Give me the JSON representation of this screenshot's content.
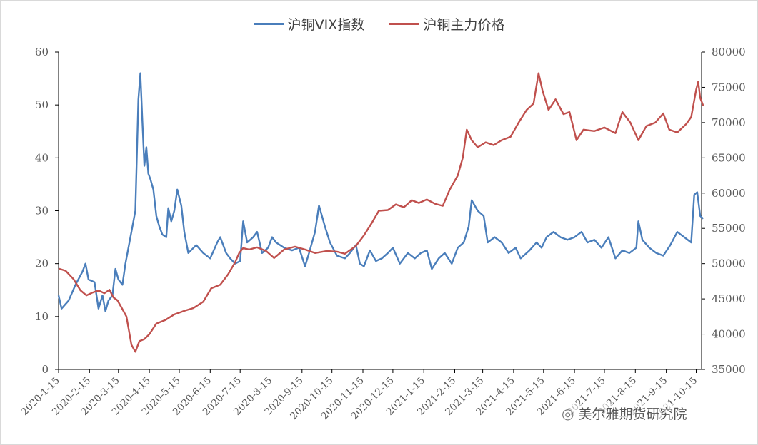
{
  "chart_data": {
    "type": "line",
    "title": "",
    "legend_placement": "top-center",
    "grid": false,
    "x_tick_labels": [
      "2020-1-15",
      "2020-2-15",
      "2020-3-15",
      "2020-4-15",
      "2020-5-15",
      "2020-6-15",
      "2020-7-15",
      "2020-8-15",
      "2020-9-15",
      "2020-10-15",
      "2020-11-15",
      "2020-12-15",
      "2021-1-15",
      "2021-2-15",
      "2021-3-15",
      "2021-4-15",
      "2021-5-15",
      "2021-6-15",
      "2021-7-15",
      "2021-8-15",
      "2021-9-15",
      "2021-10-15"
    ],
    "y_left": {
      "lim": [
        0,
        60
      ],
      "ticks": [
        0,
        10,
        20,
        30,
        40,
        50,
        60
      ]
    },
    "y_right": {
      "lim": [
        35000,
        80000
      ],
      "ticks": [
        35000,
        40000,
        45000,
        50000,
        55000,
        60000,
        65000,
        70000,
        75000,
        80000
      ]
    },
    "series": [
      {
        "name": "沪铜VIX指数",
        "axis": "left",
        "color": "#4a7ebb",
        "points": [
          [
            "2020-1-15",
            14
          ],
          [
            "2020-1-18",
            11.5
          ],
          [
            "2020-1-25",
            13
          ],
          [
            "2020-2-1",
            16
          ],
          [
            "2020-2-8",
            18.5
          ],
          [
            "2020-2-11",
            20
          ],
          [
            "2020-2-14",
            17
          ],
          [
            "2020-2-20",
            16.5
          ],
          [
            "2020-2-24",
            11.5
          ],
          [
            "2020-2-28",
            14
          ],
          [
            "2020-3-2",
            11
          ],
          [
            "2020-3-5",
            13
          ],
          [
            "2020-3-9",
            14
          ],
          [
            "2020-3-12",
            19
          ],
          [
            "2020-3-15",
            17
          ],
          [
            "2020-3-19",
            16
          ],
          [
            "2020-3-22",
            20
          ],
          [
            "2020-3-26",
            24
          ],
          [
            "2020-3-28",
            26
          ],
          [
            "2020-4-1",
            30
          ],
          [
            "2020-4-4",
            51
          ],
          [
            "2020-4-6",
            56
          ],
          [
            "2020-4-8",
            47
          ],
          [
            "2020-4-10",
            38.5
          ],
          [
            "2020-4-12",
            42
          ],
          [
            "2020-4-14",
            37
          ],
          [
            "2020-4-16",
            36
          ],
          [
            "2020-4-19",
            34
          ],
          [
            "2020-4-22",
            29
          ],
          [
            "2020-4-25",
            27
          ],
          [
            "2020-4-28",
            25.5
          ],
          [
            "2020-5-2",
            25
          ],
          [
            "2020-5-4",
            30.5
          ],
          [
            "2020-5-7",
            28
          ],
          [
            "2020-5-10",
            30
          ],
          [
            "2020-5-13",
            34
          ],
          [
            "2020-5-17",
            31
          ],
          [
            "2020-5-20",
            26
          ],
          [
            "2020-5-24",
            22
          ],
          [
            "2020-6-1",
            23.5
          ],
          [
            "2020-6-8",
            22
          ],
          [
            "2020-6-15",
            21
          ],
          [
            "2020-6-22",
            24
          ],
          [
            "2020-6-25",
            25
          ],
          [
            "2020-7-1",
            22
          ],
          [
            "2020-7-5",
            21
          ],
          [
            "2020-7-10",
            20
          ],
          [
            "2020-7-15",
            20.5
          ],
          [
            "2020-7-18",
            28
          ],
          [
            "2020-7-22",
            24
          ],
          [
            "2020-7-28",
            25
          ],
          [
            "2020-8-1",
            26
          ],
          [
            "2020-8-6",
            22
          ],
          [
            "2020-8-12",
            23
          ],
          [
            "2020-8-16",
            25
          ],
          [
            "2020-8-20",
            24
          ],
          [
            "2020-8-28",
            23
          ],
          [
            "2020-9-5",
            22.5
          ],
          [
            "2020-9-12",
            23
          ],
          [
            "2020-9-18",
            19.5
          ],
          [
            "2020-9-22",
            22
          ],
          [
            "2020-9-28",
            26
          ],
          [
            "2020-10-2",
            31
          ],
          [
            "2020-10-8",
            27
          ],
          [
            "2020-10-13",
            24
          ],
          [
            "2020-10-20",
            21.5
          ],
          [
            "2020-10-28",
            21
          ],
          [
            "2020-11-2",
            22
          ],
          [
            "2020-11-8",
            23.5
          ],
          [
            "2020-11-12",
            20
          ],
          [
            "2020-11-16",
            19.5
          ],
          [
            "2020-11-22",
            22.5
          ],
          [
            "2020-11-28",
            20.5
          ],
          [
            "2020-12-4",
            21
          ],
          [
            "2020-12-10",
            22
          ],
          [
            "2020-12-15",
            23
          ],
          [
            "2020-12-22",
            20
          ],
          [
            "2020-12-30",
            22
          ],
          [
            "2021-1-6",
            21
          ],
          [
            "2021-1-12",
            22
          ],
          [
            "2021-1-18",
            22.5
          ],
          [
            "2021-1-23",
            19
          ],
          [
            "2021-1-30",
            21
          ],
          [
            "2021-2-5",
            22
          ],
          [
            "2021-2-12",
            20
          ],
          [
            "2021-2-18",
            23
          ],
          [
            "2021-2-24",
            24
          ],
          [
            "2021-3-1",
            27
          ],
          [
            "2021-3-4",
            32
          ],
          [
            "2021-3-10",
            30
          ],
          [
            "2021-3-16",
            29
          ],
          [
            "2021-3-20",
            24
          ],
          [
            "2021-3-27",
            25
          ],
          [
            "2021-4-3",
            24
          ],
          [
            "2021-4-10",
            22
          ],
          [
            "2021-4-17",
            23
          ],
          [
            "2021-4-22",
            21
          ],
          [
            "2021-5-1",
            22.5
          ],
          [
            "2021-5-8",
            24
          ],
          [
            "2021-5-13",
            23
          ],
          [
            "2021-5-18",
            25
          ],
          [
            "2021-5-25",
            26
          ],
          [
            "2021-6-1",
            25
          ],
          [
            "2021-6-8",
            24.5
          ],
          [
            "2021-6-15",
            25
          ],
          [
            "2021-6-22",
            26
          ],
          [
            "2021-6-28",
            24
          ],
          [
            "2021-7-5",
            24.5
          ],
          [
            "2021-7-12",
            23
          ],
          [
            "2021-7-19",
            25
          ],
          [
            "2021-7-26",
            21
          ],
          [
            "2021-8-2",
            22.5
          ],
          [
            "2021-8-9",
            22
          ],
          [
            "2021-8-16",
            23
          ],
          [
            "2021-8-18",
            28
          ],
          [
            "2021-8-22",
            24.5
          ],
          [
            "2021-8-29",
            23
          ],
          [
            "2021-9-5",
            22
          ],
          [
            "2021-9-12",
            21.5
          ],
          [
            "2021-9-19",
            23.5
          ],
          [
            "2021-9-26",
            26
          ],
          [
            "2021-10-3",
            25
          ],
          [
            "2021-10-10",
            24
          ],
          [
            "2021-10-13",
            33
          ],
          [
            "2021-10-16",
            33.5
          ],
          [
            "2021-10-19",
            29
          ],
          [
            "2021-10-22",
            28.5
          ]
        ]
      },
      {
        "name": "沪铜主力价格",
        "axis": "right",
        "color": "#c0504d",
        "points": [
          [
            "2020-1-15",
            49300
          ],
          [
            "2020-1-22",
            49000
          ],
          [
            "2020-1-30",
            47800
          ],
          [
            "2020-2-6",
            46200
          ],
          [
            "2020-2-12",
            45500
          ],
          [
            "2020-2-18",
            45900
          ],
          [
            "2020-2-24",
            46200
          ],
          [
            "2020-3-1",
            45800
          ],
          [
            "2020-3-6",
            46300
          ],
          [
            "2020-3-10",
            45200
          ],
          [
            "2020-3-14",
            44800
          ],
          [
            "2020-3-18",
            43800
          ],
          [
            "2020-3-23",
            42500
          ],
          [
            "2020-3-28",
            38500
          ],
          [
            "2020-4-1",
            37500
          ],
          [
            "2020-4-5",
            39000
          ],
          [
            "2020-4-10",
            39300
          ],
          [
            "2020-4-15",
            40000
          ],
          [
            "2020-4-22",
            41500
          ],
          [
            "2020-5-1",
            42000
          ],
          [
            "2020-5-10",
            42800
          ],
          [
            "2020-5-20",
            43300
          ],
          [
            "2020-5-29",
            43700
          ],
          [
            "2020-6-8",
            44600
          ],
          [
            "2020-6-16",
            46500
          ],
          [
            "2020-6-25",
            47000
          ],
          [
            "2020-7-3",
            48500
          ],
          [
            "2020-7-10",
            50200
          ],
          [
            "2020-7-14",
            51500
          ],
          [
            "2020-7-18",
            52200
          ],
          [
            "2020-7-24",
            52000
          ],
          [
            "2020-8-1",
            52300
          ],
          [
            "2020-8-10",
            51800
          ],
          [
            "2020-8-18",
            50800
          ],
          [
            "2020-8-28",
            52000
          ],
          [
            "2020-9-8",
            52400
          ],
          [
            "2020-9-18",
            52000
          ],
          [
            "2020-9-28",
            51500
          ],
          [
            "2020-10-10",
            51800
          ],
          [
            "2020-10-20",
            51700
          ],
          [
            "2020-10-28",
            51400
          ],
          [
            "2020-11-8",
            52500
          ],
          [
            "2020-11-16",
            54000
          ],
          [
            "2020-11-24",
            55800
          ],
          [
            "2020-12-1",
            57500
          ],
          [
            "2020-12-10",
            57600
          ],
          [
            "2020-12-18",
            58400
          ],
          [
            "2020-12-26",
            58000
          ],
          [
            "2021-1-3",
            59000
          ],
          [
            "2021-1-10",
            58600
          ],
          [
            "2021-1-18",
            59100
          ],
          [
            "2021-1-26",
            58500
          ],
          [
            "2021-2-3",
            58200
          ],
          [
            "2021-2-10",
            60500
          ],
          [
            "2021-2-18",
            62500
          ],
          [
            "2021-2-23",
            65000
          ],
          [
            "2021-2-27",
            69000
          ],
          [
            "2021-3-4",
            67500
          ],
          [
            "2021-3-10",
            66500
          ],
          [
            "2021-3-18",
            67200
          ],
          [
            "2021-3-26",
            66800
          ],
          [
            "2021-4-3",
            67500
          ],
          [
            "2021-4-12",
            68000
          ],
          [
            "2021-4-20",
            70000
          ],
          [
            "2021-4-28",
            71800
          ],
          [
            "2021-5-5",
            72700
          ],
          [
            "2021-5-10",
            77000
          ],
          [
            "2021-5-14",
            74500
          ],
          [
            "2021-5-20",
            71800
          ],
          [
            "2021-5-27",
            73300
          ],
          [
            "2021-6-4",
            71200
          ],
          [
            "2021-6-10",
            71500
          ],
          [
            "2021-6-17",
            67500
          ],
          [
            "2021-6-24",
            69000
          ],
          [
            "2021-7-5",
            68800
          ],
          [
            "2021-7-15",
            69300
          ],
          [
            "2021-7-26",
            68500
          ],
          [
            "2021-8-2",
            71500
          ],
          [
            "2021-8-10",
            70000
          ],
          [
            "2021-8-18",
            67500
          ],
          [
            "2021-8-26",
            69500
          ],
          [
            "2021-9-4",
            70000
          ],
          [
            "2021-9-12",
            71300
          ],
          [
            "2021-9-18",
            69000
          ],
          [
            "2021-9-26",
            68600
          ],
          [
            "2021-10-5",
            69800
          ],
          [
            "2021-10-10",
            70800
          ],
          [
            "2021-10-15",
            74700
          ],
          [
            "2021-10-17",
            75800
          ],
          [
            "2021-10-19",
            73500
          ],
          [
            "2021-10-22",
            72400
          ]
        ]
      }
    ]
  },
  "watermark": {
    "text": "美尔雅期货研究院",
    "icon": "wechat-icon"
  }
}
